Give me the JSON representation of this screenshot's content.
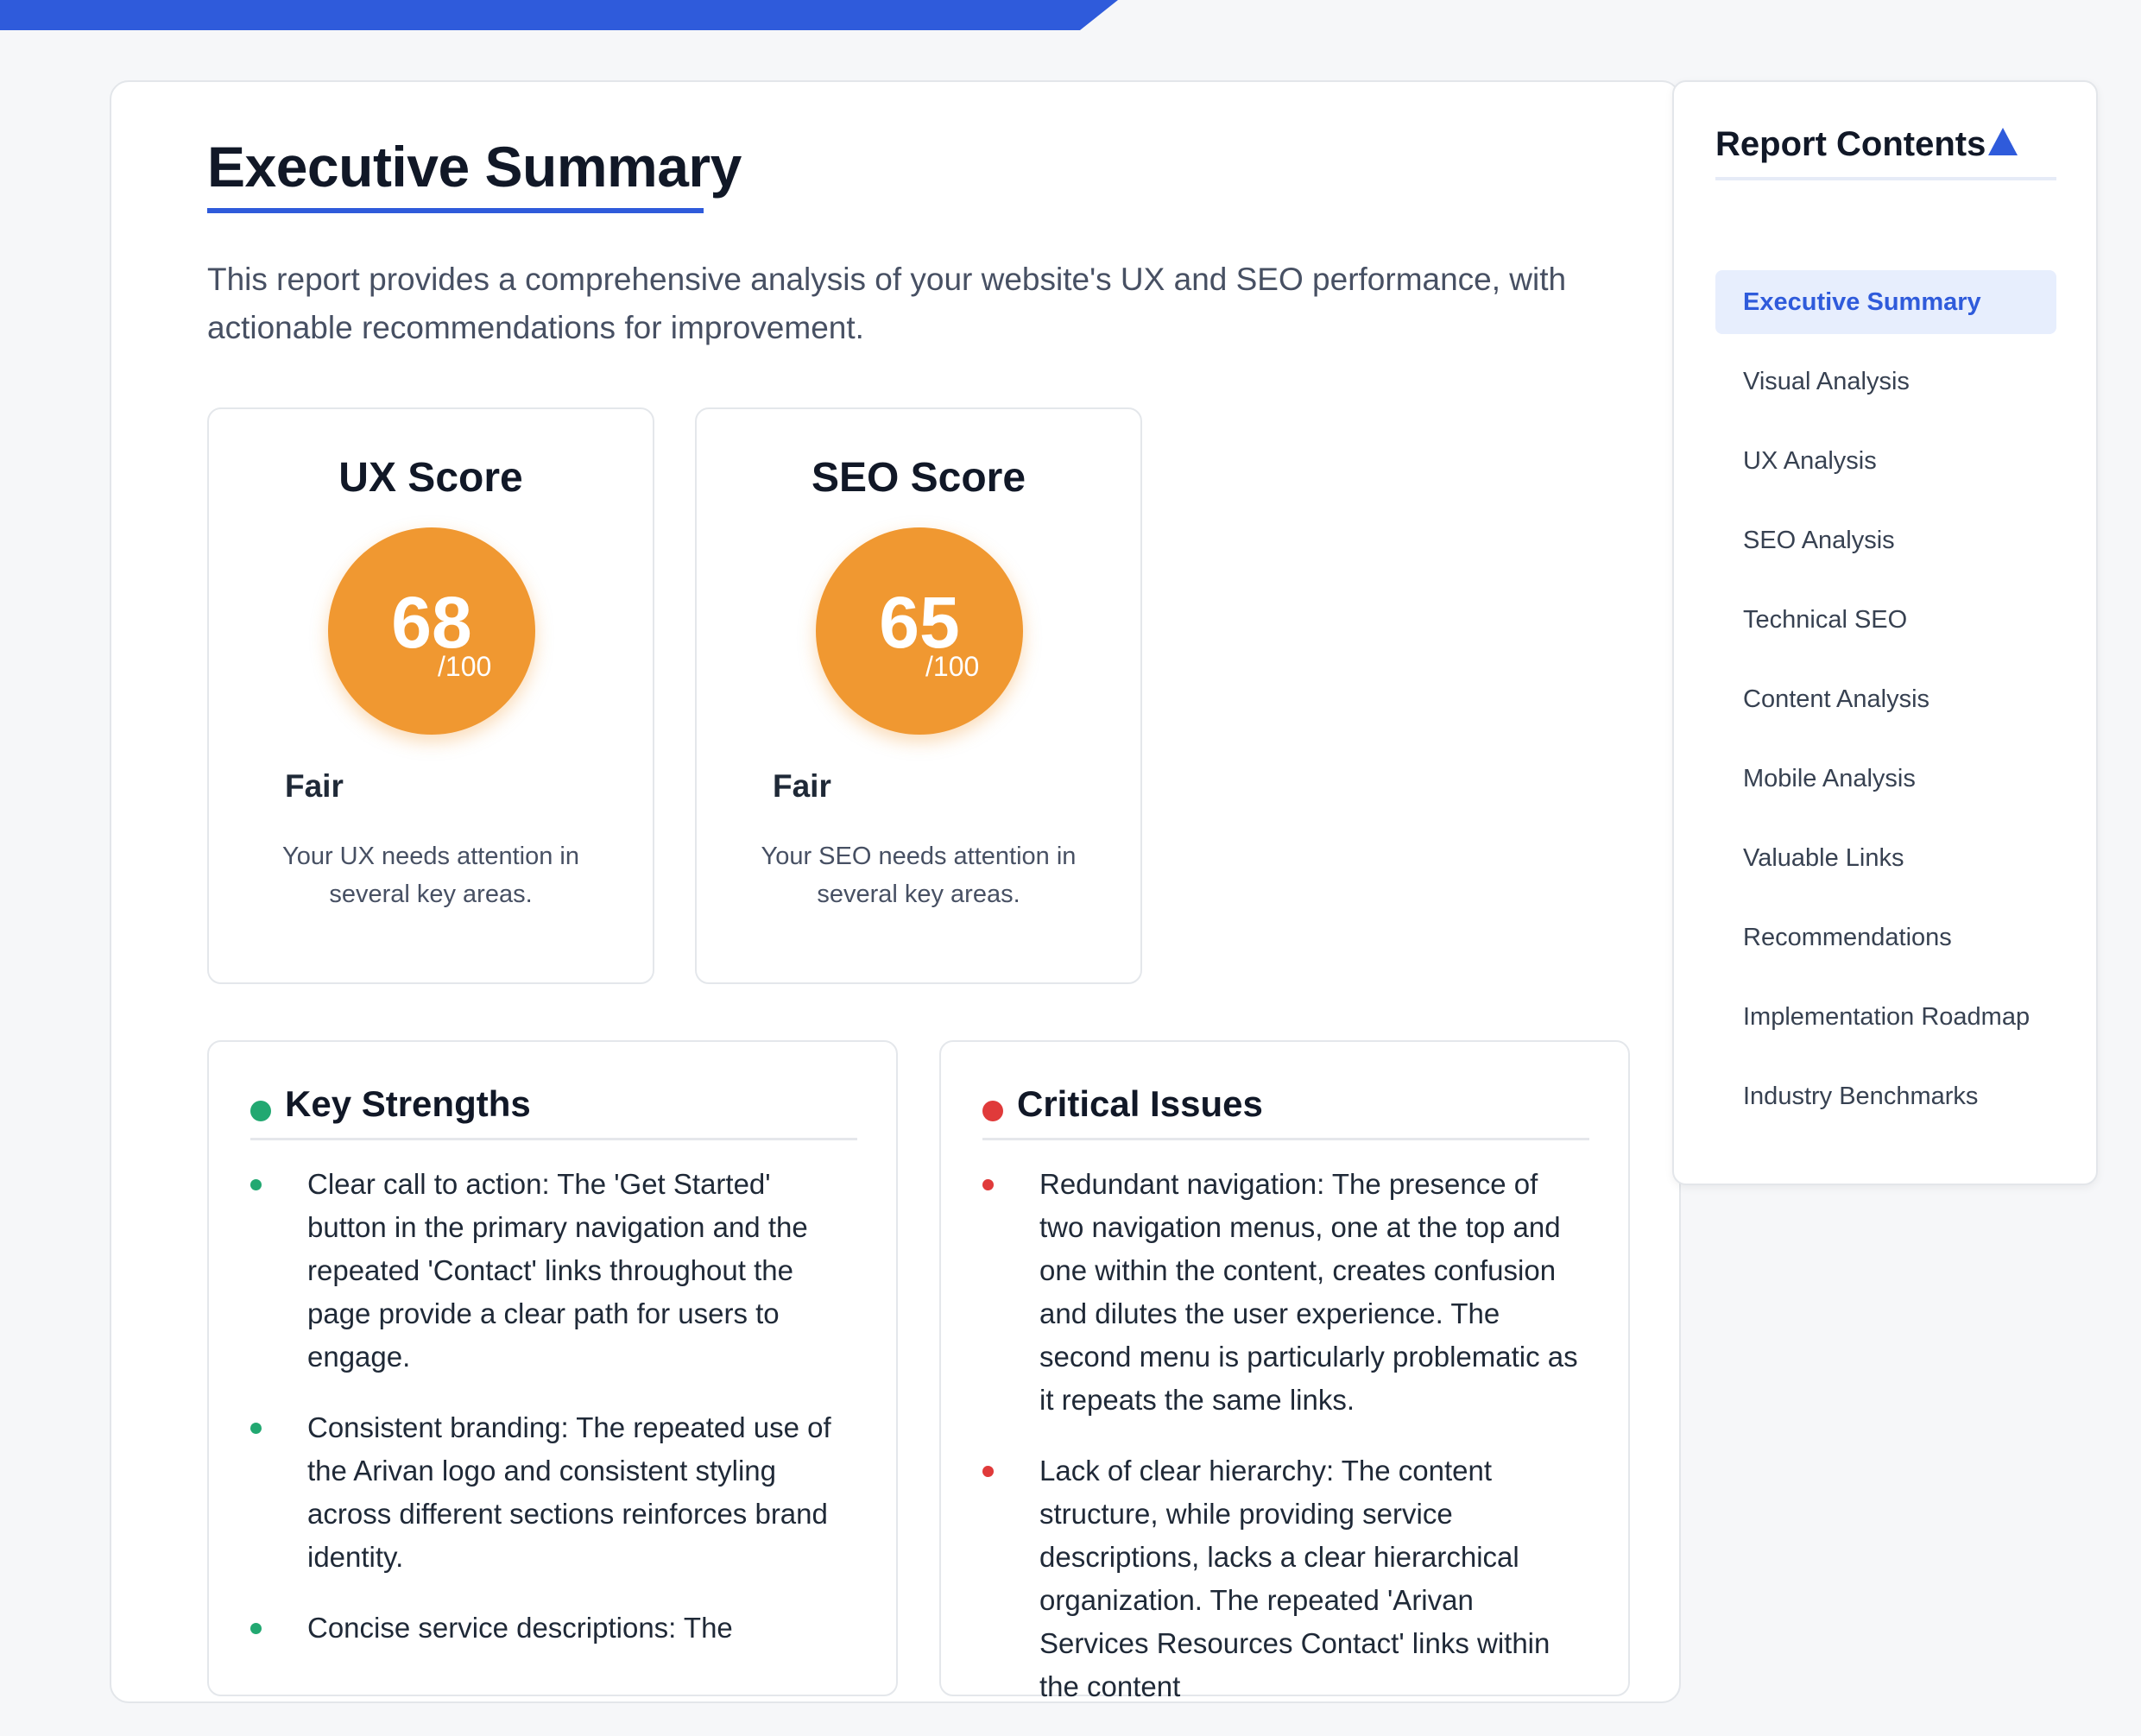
{
  "header": {
    "title": "Executive Summary",
    "intro": "This report provides a comprehensive analysis of your website's UX and SEO performance, with actionable recommendations for improvement."
  },
  "scores": {
    "ux": {
      "title": "UX Score",
      "value": "68",
      "max": "/100",
      "rating": "Fair",
      "description": "Your UX needs attention in several key areas.",
      "color": "#f09831"
    },
    "seo": {
      "title": "SEO Score",
      "value": "65",
      "max": "/100",
      "rating": "Fair",
      "description": "Your SEO needs attention in several key areas.",
      "color": "#f09831"
    }
  },
  "strengths": {
    "title": "Key Strengths",
    "color": "#22a871",
    "items": [
      "Clear call to action: The 'Get Started' button in the primary navigation and the repeated 'Contact' links throughout the page provide a clear path for users to engage.",
      "Consistent branding: The repeated use of the Arivan logo and consistent styling across different sections reinforces brand identity.",
      "Concise service descriptions: The"
    ]
  },
  "issues": {
    "title": "Critical Issues",
    "color": "#e03a3a",
    "items": [
      "Redundant navigation: The presence of two navigation menus, one at the top and one within the content, creates confusion and dilutes the user experience. The second menu is particularly problematic as it repeats the same links.",
      "Lack of clear hierarchy: The content structure, while providing service descriptions, lacks a clear hierarchical organization. The repeated 'Arivan Services Resources Contact' links within the content"
    ]
  },
  "toc": {
    "title": "Report Contents",
    "icon": "triangle-icon",
    "accent": "#2f5bdb",
    "items": [
      "Executive Summary",
      "Visual Analysis",
      "UX Analysis",
      "SEO Analysis",
      "Technical SEO",
      "Content Analysis",
      "Mobile Analysis",
      "Valuable Links",
      "Recommendations",
      "Implementation Roadmap",
      "Industry Benchmarks"
    ],
    "active": "Executive Summary"
  }
}
